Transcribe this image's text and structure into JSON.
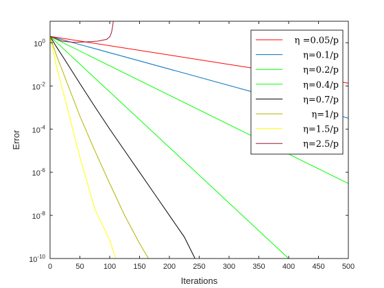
{
  "chart_data": {
    "type": "line",
    "xlabel": "Iterations",
    "ylabel": "Error",
    "xlim": [
      0,
      500
    ],
    "ylim": [
      1e-10,
      10
    ],
    "yscale": "log",
    "grid": false,
    "box": true,
    "legend_position": "top-right",
    "xticks": [
      0,
      50,
      100,
      150,
      200,
      250,
      300,
      350,
      400,
      450,
      500
    ],
    "xtick_labels": [
      "0",
      "50",
      "100",
      "150",
      "200",
      "250",
      "300",
      "350",
      "400",
      "450",
      "500"
    ],
    "yticks": [
      {
        "value": 1,
        "base": "10",
        "exp": "0"
      },
      {
        "value": 0.01,
        "base": "10",
        "exp": "-2"
      },
      {
        "value": 0.0001,
        "base": "10",
        "exp": "-4"
      },
      {
        "value": 1e-06,
        "base": "10",
        "exp": "-6"
      },
      {
        "value": 1e-08,
        "base": "10",
        "exp": "-8"
      },
      {
        "value": 1e-10,
        "base": "10",
        "exp": "-10"
      }
    ],
    "series": [
      {
        "name": "η =0.05/p",
        "color": "#ff0000",
        "x": [
          0,
          500
        ],
        "y": [
          2,
          0.0135
        ]
      },
      {
        "name": "η=0.1/p",
        "color": "#0072bd",
        "x": [
          0,
          500
        ],
        "y": [
          2,
          0.00032
        ]
      },
      {
        "name": "η=0.2/p",
        "color": "#00ff00",
        "x": [
          0,
          500
        ],
        "y": [
          2,
          3e-07
        ]
      },
      {
        "name": "η=0.4/p",
        "color": "#00ff00",
        "x": [
          0,
          400
        ],
        "y": [
          2,
          1e-10
        ]
      },
      {
        "name": "η=0.7/p",
        "color": "#000000",
        "x": [
          0,
          10,
          25,
          50,
          75,
          100,
          125,
          150,
          175,
          200,
          225,
          243
        ],
        "y": [
          2,
          0.7,
          0.16,
          0.013,
          0.0011,
          0.0001,
          1e-05,
          1e-06,
          1e-07,
          1e-08,
          1e-09,
          1e-10
        ]
      },
      {
        "name": "η=1/p",
        "color": "#b2b200",
        "x": [
          0,
          10,
          25,
          50,
          75,
          100,
          125,
          150,
          165
        ],
        "y": [
          2,
          0.3,
          0.025,
          0.0004,
          1e-05,
          3e-07,
          1e-08,
          5e-10,
          1e-10
        ]
      },
      {
        "name": "η=1.5/p",
        "color": "#ffff00",
        "x": [
          0,
          10,
          25,
          50,
          75,
          100,
          110
        ],
        "y": [
          2,
          0.1,
          0.0025,
          5e-06,
          2e-08,
          7e-10,
          1e-10
        ]
      },
      {
        "name": "η=2.5/p",
        "color": "#a2142f",
        "x": [
          0,
          20,
          40,
          60,
          80,
          95,
          100,
          103,
          105,
          106
        ],
        "y": [
          2,
          1.2,
          1.05,
          1.1,
          1.2,
          1.45,
          1.9,
          3,
          6,
          10
        ]
      }
    ]
  }
}
